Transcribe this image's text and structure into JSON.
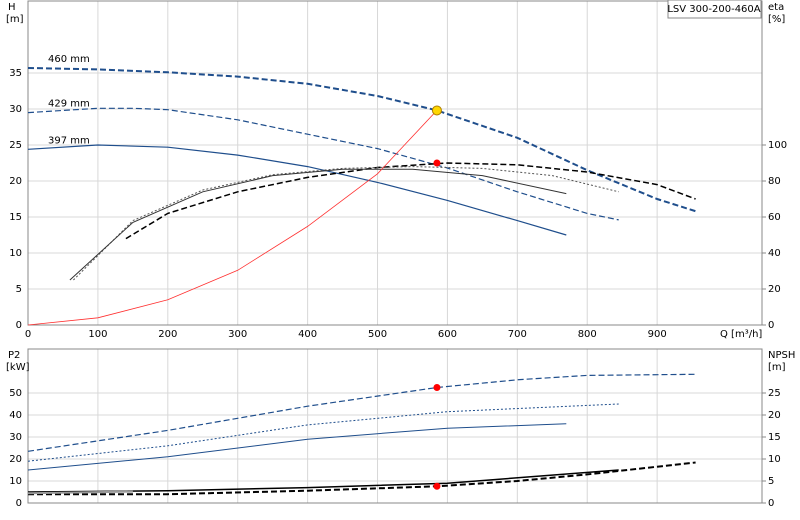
{
  "chart_data": [
    {
      "type": "line",
      "title": "LSV 300-200-460A",
      "y_label": "H",
      "y_unit": "[m]",
      "y2_label": "eta",
      "y2_unit": "[%]",
      "x_label": "Q [m³/h]",
      "xlim": [
        0,
        1050
      ],
      "xticks": [
        0,
        100,
        200,
        300,
        400,
        500,
        600,
        700,
        800,
        900
      ],
      "ylim": [
        0,
        45
      ],
      "yticks": [
        0,
        5,
        10,
        15,
        20,
        25,
        30,
        35
      ],
      "y2lim": [
        0,
        180
      ],
      "y2ticks": [
        0,
        20,
        40,
        60,
        80,
        100
      ],
      "grid": true,
      "series": [
        {
          "name": "460 mm",
          "color": "#1f4e8c",
          "dash": "dashed",
          "width": 2,
          "x": [
            0,
            100,
            200,
            300,
            400,
            500,
            585,
            700,
            800,
            900,
            955
          ],
          "values": [
            35.7,
            35.5,
            35.1,
            34.5,
            33.5,
            31.8,
            29.8,
            26,
            21.5,
            17.5,
            15.8
          ]
        },
        {
          "name": "429 mm",
          "color": "#1f4e8c",
          "dash": "dashed",
          "width": 1.2,
          "x": [
            0,
            100,
            150,
            200,
            300,
            400,
            500,
            600,
            700,
            800,
            845
          ],
          "values": [
            29.5,
            30.1,
            30.1,
            29.9,
            28.5,
            26.5,
            24.5,
            21.8,
            18.5,
            15.5,
            14.6
          ]
        },
        {
          "name": "397 mm",
          "color": "#1f4e8c",
          "dash": "solid",
          "width": 1.2,
          "x": [
            0,
            100,
            200,
            300,
            400,
            500,
            600,
            700,
            770
          ],
          "values": [
            24.4,
            25,
            24.7,
            23.6,
            22,
            19.8,
            17.3,
            14.5,
            12.5
          ]
        },
        {
          "color": "#000000",
          "dash": "dashed",
          "width": 1.5,
          "axis": "y2",
          "x": [
            140,
            200,
            300,
            400,
            500,
            600,
            700,
            800,
            900,
            955
          ],
          "values": [
            48,
            62,
            74,
            82,
            87.5,
            90,
            89,
            85,
            78,
            70
          ]
        },
        {
          "color": "#555555",
          "dash": "dotted",
          "width": 1,
          "axis": "y2",
          "x": [
            65,
            150,
            250,
            350,
            450,
            550,
            650,
            750,
            845
          ],
          "values": [
            25,
            58,
            75,
            83.5,
            87,
            88,
            87,
            83,
            74
          ]
        },
        {
          "color": "#333333",
          "dash": "solid",
          "width": 1,
          "axis": "y2",
          "x": [
            60,
            150,
            250,
            350,
            450,
            550,
            650,
            770
          ],
          "values": [
            25,
            57,
            74,
            83,
            86.5,
            86.5,
            83,
            73
          ]
        },
        {
          "color": "#ff3030",
          "dash": "solid",
          "width": 0.8,
          "x": [
            0,
            100,
            200,
            300,
            400,
            500,
            585
          ],
          "values": [
            0,
            1,
            3.5,
            7.6,
            13.7,
            21,
            29.8
          ]
        }
      ],
      "markers": [
        {
          "color": "#ffd700",
          "x": 585,
          "y": 29.8
        },
        {
          "color": "#ff0000",
          "x": 585,
          "y": 90,
          "axis": "y2"
        }
      ]
    },
    {
      "type": "line",
      "y_label": "P2",
      "y_unit": "[kW]",
      "y2_label": "NPSH",
      "y2_unit": "[m]",
      "xlim": [
        0,
        1050
      ],
      "ylim": [
        0,
        70
      ],
      "yticks": [
        0,
        10,
        20,
        30,
        40,
        50
      ],
      "y2lim": [
        0,
        35
      ],
      "y2ticks": [
        0,
        5,
        10,
        15,
        20,
        25
      ],
      "grid": true,
      "series": [
        {
          "color": "#1f4e8c",
          "dash": "dashed",
          "width": 1.2,
          "x": [
            0,
            200,
            400,
            585,
            700,
            800,
            955
          ],
          "values": [
            23.5,
            33,
            44,
            52.5,
            56,
            58,
            58.5
          ]
        },
        {
          "color": "#1f4e8c",
          "dash": "dotted",
          "width": 1,
          "x": [
            0,
            200,
            400,
            600,
            845
          ],
          "values": [
            19,
            26,
            35.5,
            41.5,
            45
          ]
        },
        {
          "color": "#1f4e8c",
          "dash": "solid",
          "width": 1,
          "x": [
            0,
            200,
            400,
            600,
            770
          ],
          "values": [
            15,
            21,
            29,
            34,
            36
          ]
        },
        {
          "color": "#000000",
          "dash": "dashed",
          "width": 2,
          "axis": "y2",
          "x": [
            0,
            200,
            400,
            585,
            700,
            800,
            955
          ],
          "values": [
            2,
            2,
            2.8,
            3.8,
            5,
            6.5,
            9.2
          ]
        },
        {
          "color": "#000000",
          "dash": "solid",
          "width": 1.5,
          "axis": "y2",
          "x": [
            0,
            200,
            400,
            600,
            845
          ],
          "values": [
            2.5,
            2.8,
            3.5,
            4.5,
            7.5
          ]
        },
        {
          "color": "#999999",
          "dash": "solid",
          "width": 2,
          "axis": "y2",
          "x": [
            0,
            150
          ],
          "values": [
            2.2,
            2.6
          ]
        }
      ],
      "markers": [
        {
          "color": "#ff0000",
          "x": 585,
          "y": 52.5
        },
        {
          "color": "#ff0000",
          "x": 585,
          "y": 3.8,
          "axis": "y2"
        }
      ]
    }
  ]
}
